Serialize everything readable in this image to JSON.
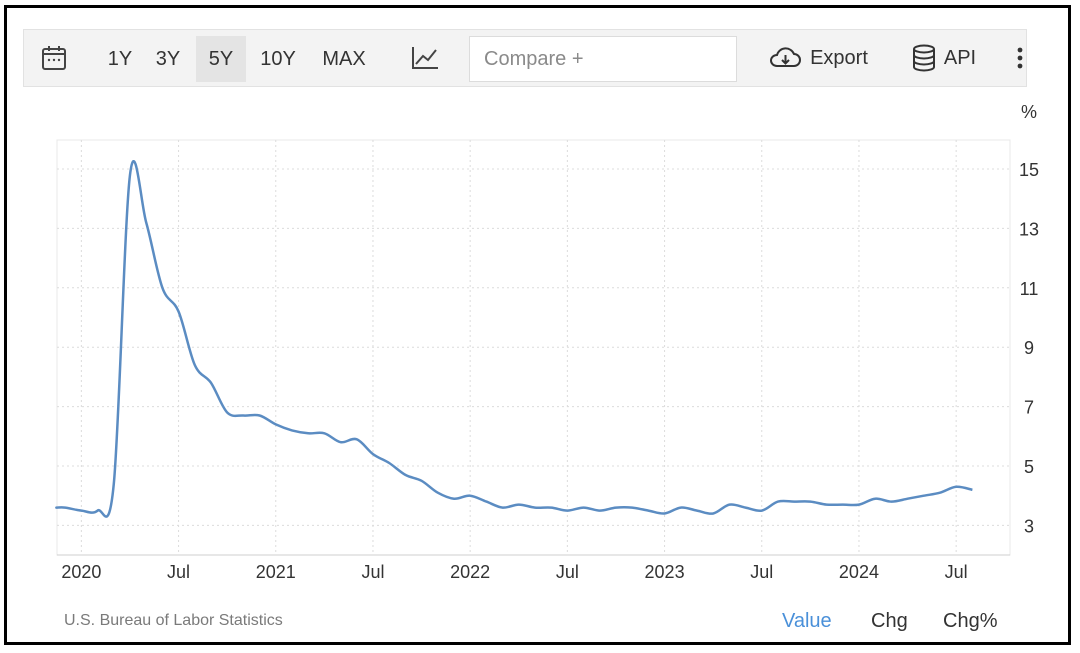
{
  "toolbar": {
    "ranges": [
      "1Y",
      "3Y",
      "5Y",
      "10Y",
      "MAX"
    ],
    "active_range": "5Y",
    "compare_placeholder": "Compare +",
    "export_label": "Export",
    "api_label": "API",
    "icons": [
      "calendar-icon",
      "line-chart-icon",
      "cloud-download-icon",
      "database-icon",
      "more-vert-icon"
    ]
  },
  "chart_data": {
    "type": "line",
    "unit": "%",
    "x_ticks": [
      "2020",
      "Jul",
      "2021",
      "Jul",
      "2022",
      "Jul",
      "2023",
      "Jul",
      "2024",
      "Jul"
    ],
    "y_ticks": [
      "15",
      "13",
      "11",
      "9",
      "7",
      "5",
      "3"
    ],
    "xlim": [
      "2019-10",
      "2024-08"
    ],
    "ylim": [
      2,
      16
    ],
    "grid": true,
    "color": "#5b8cc2",
    "series": [
      {
        "x": [
          "2019-10",
          "2019-11",
          "2019-12",
          "2020-01",
          "2020-02",
          "2020-03",
          "2020-04",
          "2020-05",
          "2020-06",
          "2020-07",
          "2020-08",
          "2020-09",
          "2020-10",
          "2020-11",
          "2020-12",
          "2021-01",
          "2021-02",
          "2021-03",
          "2021-04",
          "2021-05",
          "2021-06",
          "2021-07",
          "2021-08",
          "2021-09",
          "2021-10",
          "2021-11",
          "2021-12",
          "2022-01",
          "2022-02",
          "2022-03",
          "2022-04",
          "2022-05",
          "2022-06",
          "2022-07",
          "2022-08",
          "2022-09",
          "2022-10",
          "2022-11",
          "2022-12",
          "2023-01",
          "2023-02",
          "2023-03",
          "2023-04",
          "2023-05",
          "2023-06",
          "2023-07",
          "2023-08",
          "2023-09",
          "2023-10",
          "2023-11",
          "2023-12",
          "2024-01",
          "2024-02",
          "2024-03",
          "2024-04",
          "2024-05",
          "2024-06",
          "2024-07",
          "2024-08"
        ],
        "values": [
          3.6,
          3.6,
          3.6,
          3.5,
          3.5,
          4.4,
          14.8,
          13.2,
          11.0,
          10.2,
          8.4,
          7.8,
          6.8,
          6.7,
          6.7,
          6.4,
          6.2,
          6.1,
          6.1,
          5.8,
          5.9,
          5.4,
          5.1,
          4.7,
          4.5,
          4.1,
          3.9,
          4.0,
          3.8,
          3.6,
          3.7,
          3.6,
          3.6,
          3.5,
          3.6,
          3.5,
          3.6,
          3.6,
          3.5,
          3.4,
          3.6,
          3.5,
          3.4,
          3.7,
          3.6,
          3.5,
          3.8,
          3.8,
          3.8,
          3.7,
          3.7,
          3.7,
          3.9,
          3.8,
          3.9,
          4.0,
          4.1,
          4.3,
          4.2
        ]
      }
    ]
  },
  "footer": {
    "source": "U.S. Bureau of Labor Statistics",
    "tabs": [
      "Value",
      "Chg",
      "Chg%"
    ],
    "active_tab": "Value"
  }
}
